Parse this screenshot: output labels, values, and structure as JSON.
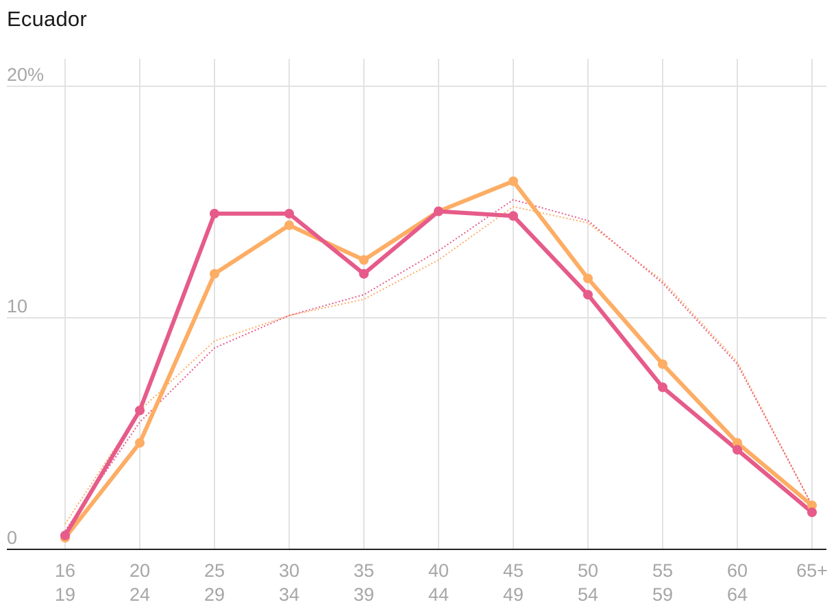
{
  "chart_data": {
    "type": "line",
    "title": "Ecuador",
    "xlabel": "",
    "ylabel": "",
    "categories": [
      [
        "16",
        "19"
      ],
      [
        "20",
        "24"
      ],
      [
        "25",
        "29"
      ],
      [
        "30",
        "34"
      ],
      [
        "35",
        "39"
      ],
      [
        "40",
        "44"
      ],
      [
        "45",
        "49"
      ],
      [
        "50",
        "54"
      ],
      [
        "55",
        "59"
      ],
      [
        "60",
        "64"
      ],
      [
        "65+",
        ""
      ]
    ],
    "y_ticks": [
      "0",
      "10",
      "20%"
    ],
    "y_tick_values": [
      0,
      10,
      20
    ],
    "ylim": [
      0,
      20
    ],
    "grid": true,
    "series": [
      {
        "color": "#fdad64",
        "style": "solid",
        "markers": true,
        "values": [
          0.5,
          4.6,
          11.9,
          14.0,
          12.5,
          14.6,
          15.9,
          11.7,
          8.0,
          4.6,
          1.9
        ]
      },
      {
        "color": "#e65b8a",
        "style": "solid",
        "markers": true,
        "values": [
          0.6,
          6.0,
          14.5,
          14.5,
          11.9,
          14.6,
          14.4,
          11.0,
          7.0,
          4.3,
          1.6
        ]
      },
      {
        "color": "#fdad64",
        "style": "dotted",
        "markers": false,
        "values": [
          1.1,
          6.0,
          9.0,
          10.1,
          10.8,
          12.5,
          14.8,
          14.1,
          11.6,
          8.1,
          1.9
        ]
      },
      {
        "color": "#e65b8a",
        "style": "dotted",
        "markers": false,
        "values": [
          0.8,
          5.5,
          8.7,
          10.1,
          11.0,
          12.9,
          15.1,
          14.2,
          11.5,
          8.0,
          1.9
        ]
      }
    ]
  }
}
